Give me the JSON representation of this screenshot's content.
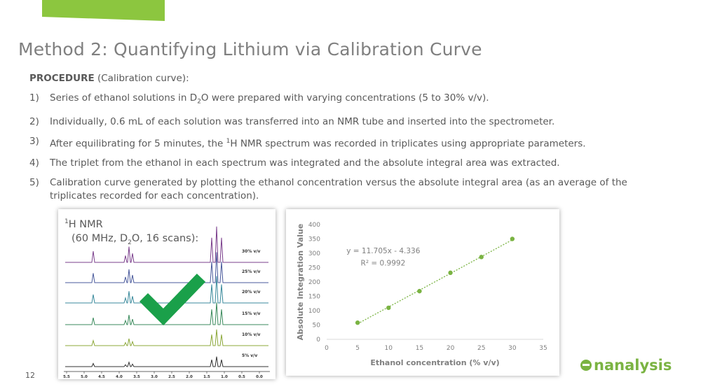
{
  "colors": {
    "accent": "#8cc63f",
    "trend": "#7ab342",
    "check": "#1aa04a"
  },
  "slide": {
    "title": "Method 2: Quantifying Lithium via Calibration Curve",
    "procedure_label": "PROCEDURE",
    "procedure_suffix": " (Calibration curve):",
    "page_number": "12",
    "logo_text": "nanalysis"
  },
  "steps": [
    {
      "num": "1)",
      "parts": [
        "Series of ethanol solutions in D",
        "2",
        "O were prepared with varying concentrations (5 to 30% v/v)."
      ]
    },
    {
      "num": "2)",
      "text": "Individually, 0.6 mL of each solution was transferred into an NMR tube and inserted into the spectrometer."
    },
    {
      "num": "3)",
      "parts": [
        "After equilibrating for 5 minutes, the ",
        "1",
        "H NMR spectrum was recorded in triplicates using appropriate parameters."
      ]
    },
    {
      "num": "4)",
      "text": "The triplet from the ethanol in each spectrum was integrated and the absolute integral area was extracted."
    },
    {
      "num": "5)",
      "text": "Calibration curve generated by plotting the ethanol concentration versus the absolute integral area (as an average of the triplicates recorded for each concentration)."
    }
  ],
  "nmr": {
    "sup": "1",
    "title_main": "H NMR",
    "subtitle_pre": "(60 MHz, D",
    "subtitle_sub": "2",
    "subtitle_post": "O, 16 scans):",
    "spectra": [
      {
        "label": "30% v/v",
        "color": "#7b3f8c"
      },
      {
        "label": "25% v/v",
        "color": "#4a5a9c"
      },
      {
        "label": "20% v/v",
        "color": "#3a8a9c"
      },
      {
        "label": "15% v/v",
        "color": "#3a8a5c"
      },
      {
        "label": "10% v/v",
        "color": "#8ca83a"
      },
      {
        "label": "5% v/v",
        "color": "#333333"
      }
    ],
    "axis_ticks": [
      "5.5",
      "5.0",
      "4.5",
      "4.0",
      "3.5",
      "3.0",
      "2.5",
      "2.0",
      "1.5",
      "1.0",
      "0.5",
      "0.0"
    ]
  },
  "chart_data": {
    "type": "scatter",
    "xlabel": "Ethanol concentration (% v/v)",
    "ylabel": "Absolute Integration Value",
    "xlim": [
      0,
      35
    ],
    "ylim": [
      0,
      400
    ],
    "xticks": [
      0,
      5,
      10,
      15,
      20,
      25,
      30,
      35
    ],
    "yticks": [
      0,
      50,
      100,
      150,
      200,
      250,
      300,
      350,
      400
    ],
    "x": [
      5,
      10,
      15,
      20,
      25,
      30
    ],
    "y": [
      58,
      110,
      168,
      232,
      287,
      350
    ],
    "trendline": {
      "slope": 11.705,
      "intercept": -4.336,
      "style": "dotted"
    },
    "equation": "y = 11.705x - 4.336",
    "r2": "R² = 0.9992",
    "grid": false
  }
}
